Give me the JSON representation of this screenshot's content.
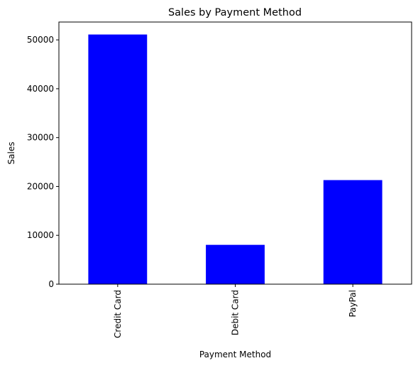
{
  "chart_data": {
    "type": "bar",
    "title": "Sales by Payment Method",
    "xlabel": "Payment Method",
    "ylabel": "Sales",
    "categories": [
      "Credit Card",
      "Debit Card",
      "PayPal"
    ],
    "values": [
      51100,
      8050,
      21300
    ],
    "ylim": [
      0,
      53655
    ],
    "yticks": [
      0,
      10000,
      20000,
      30000,
      40000,
      50000
    ],
    "bar_color": "#0000ff",
    "grid": false,
    "legend": false
  }
}
